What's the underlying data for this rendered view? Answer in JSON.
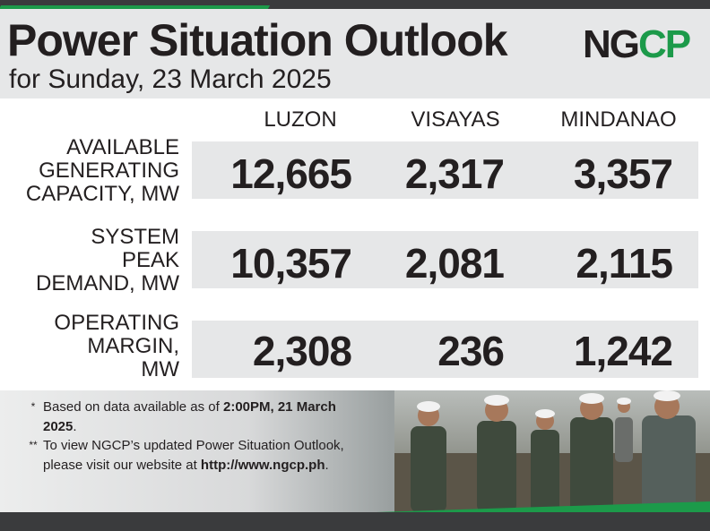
{
  "header": {
    "title": "Power Situation Outlook",
    "subtitle": "for Sunday, 23 March 2025"
  },
  "logo": {
    "text": "NGCP",
    "color_dark": "#231f20",
    "color_green": "#1c9a4a"
  },
  "table": {
    "columns": [
      "LUZON",
      "VISAYAS",
      "MINDANAO"
    ],
    "rows": [
      {
        "label_lines": [
          "AVAILABLE",
          "GENERATING",
          "CAPACITY, MW"
        ],
        "values": [
          "12,665",
          "2,317",
          "3,357"
        ]
      },
      {
        "label_lines": [
          "SYSTEM",
          "PEAK",
          "DEMAND, MW"
        ],
        "values": [
          "10,357",
          "2,081",
          "2,115"
        ]
      },
      {
        "label_lines": [
          "OPERATING",
          "MARGIN,",
          "MW"
        ],
        "values": [
          "2,308",
          "236",
          "1,242"
        ]
      }
    ]
  },
  "footer": {
    "notes": [
      {
        "marker": "*",
        "text_a": "Based on data available as of ",
        "bold_a": "2:00PM, 21 March 2025",
        "text_b": "."
      },
      {
        "marker": "**",
        "text_a": "To view NGCP’s updated Power Situation Outlook, please visit our website at ",
        "bold_a": "http://www.ngcp.ph",
        "text_b": "."
      }
    ]
  },
  "colors": {
    "accent_green": "#1c9a4a",
    "band_gray": "#e6e7e8",
    "text_dark": "#231f20",
    "bar_dark": "#3a3b3d"
  }
}
